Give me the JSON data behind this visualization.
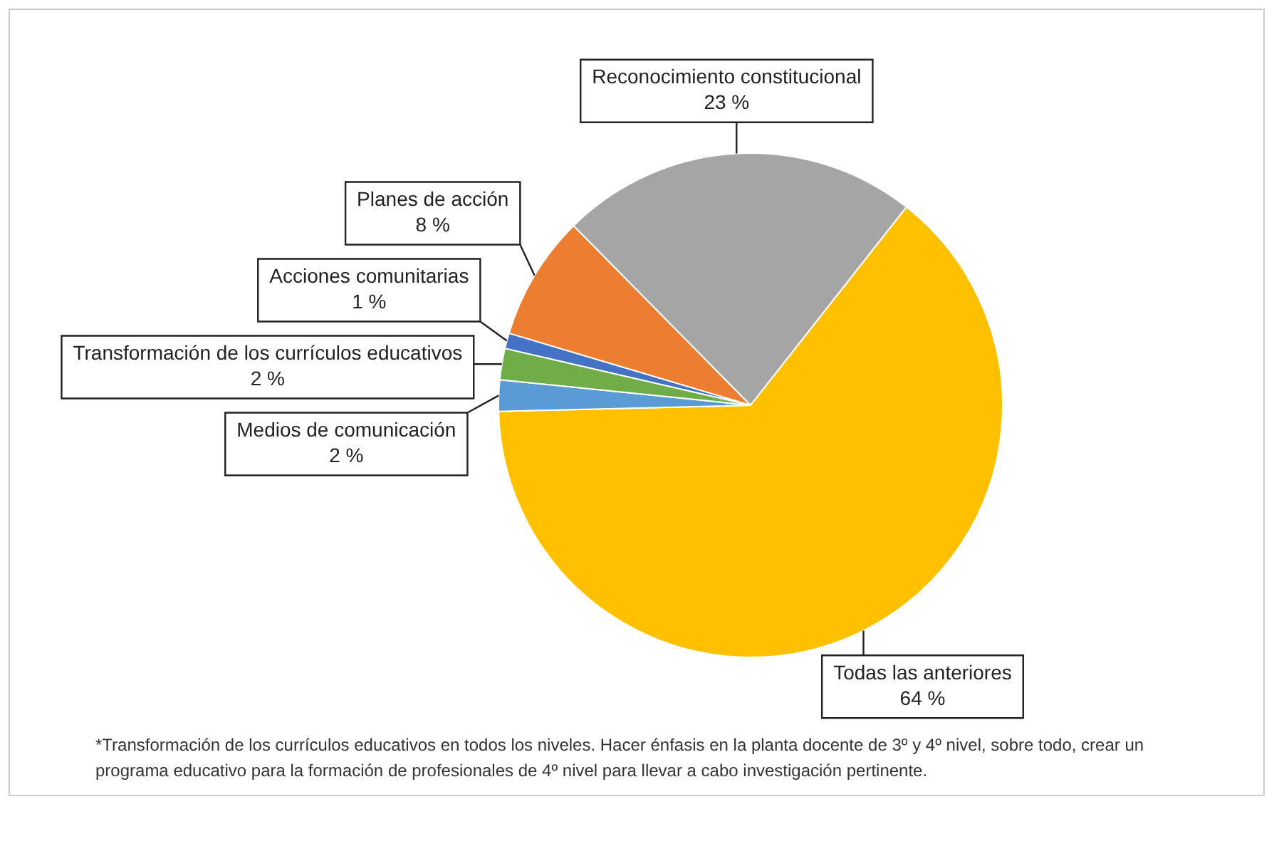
{
  "chart_data": {
    "type": "pie",
    "categories": [
      "Acciones comunitarias",
      "Planes de acción",
      "Reconocimiento constitucional",
      "Todas las anteriores",
      "Medios de comunicación",
      "Transformación de los currículos educativos"
    ],
    "values": [
      1,
      8,
      23,
      64,
      2,
      2
    ],
    "value_labels": [
      "1 %",
      "8 %",
      "23 %",
      "64 %",
      "2 %",
      "2 %"
    ],
    "colors": [
      "#4472c4",
      "#ed7d31",
      "#a5a5a5",
      "#ffc000",
      "#5b9bd5",
      "#70ad47"
    ],
    "legend": false,
    "annotations": [
      "*Transformación de los currículos educativos en todos los niveles. Hacer énfasis en la planta docente de 3º y 4º nivel, sobre todo, crear un programa educativo para la formación de profesionales de 4º nivel para llevar a cabo investigación pertinente."
    ]
  }
}
